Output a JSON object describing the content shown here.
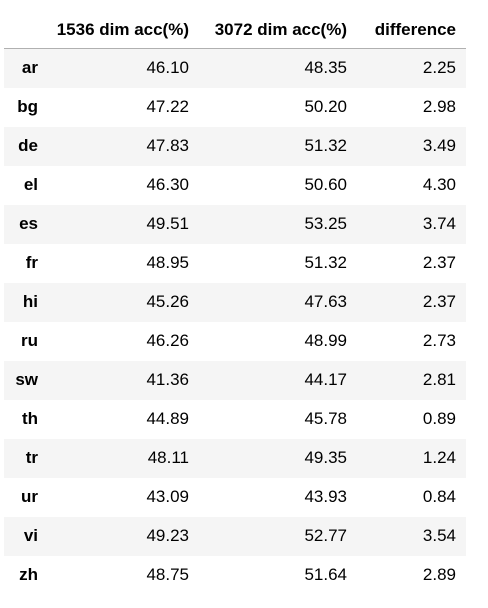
{
  "table": {
    "columns": [
      "",
      "1536 dim acc(%)",
      "3072 dim acc(%)",
      "difference"
    ],
    "rows": [
      {
        "label": "ar",
        "values": [
          "46.10",
          "48.35",
          "2.25"
        ]
      },
      {
        "label": "bg",
        "values": [
          "47.22",
          "50.20",
          "2.98"
        ]
      },
      {
        "label": "de",
        "values": [
          "47.83",
          "51.32",
          "3.49"
        ]
      },
      {
        "label": "el",
        "values": [
          "46.30",
          "50.60",
          "4.30"
        ]
      },
      {
        "label": "es",
        "values": [
          "49.51",
          "53.25",
          "3.74"
        ]
      },
      {
        "label": "fr",
        "values": [
          "48.95",
          "51.32",
          "2.37"
        ]
      },
      {
        "label": "hi",
        "values": [
          "45.26",
          "47.63",
          "2.37"
        ]
      },
      {
        "label": "ru",
        "values": [
          "46.26",
          "48.99",
          "2.73"
        ]
      },
      {
        "label": "sw",
        "values": [
          "41.36",
          "44.17",
          "2.81"
        ]
      },
      {
        "label": "th",
        "values": [
          "44.89",
          "45.78",
          "0.89"
        ]
      },
      {
        "label": "tr",
        "values": [
          "48.11",
          "49.35",
          "1.24"
        ]
      },
      {
        "label": "ur",
        "values": [
          "43.09",
          "43.93",
          "0.84"
        ]
      },
      {
        "label": "vi",
        "values": [
          "49.23",
          "52.77",
          "3.54"
        ]
      },
      {
        "label": "zh",
        "values": [
          "48.75",
          "51.64",
          "2.89"
        ]
      }
    ]
  }
}
